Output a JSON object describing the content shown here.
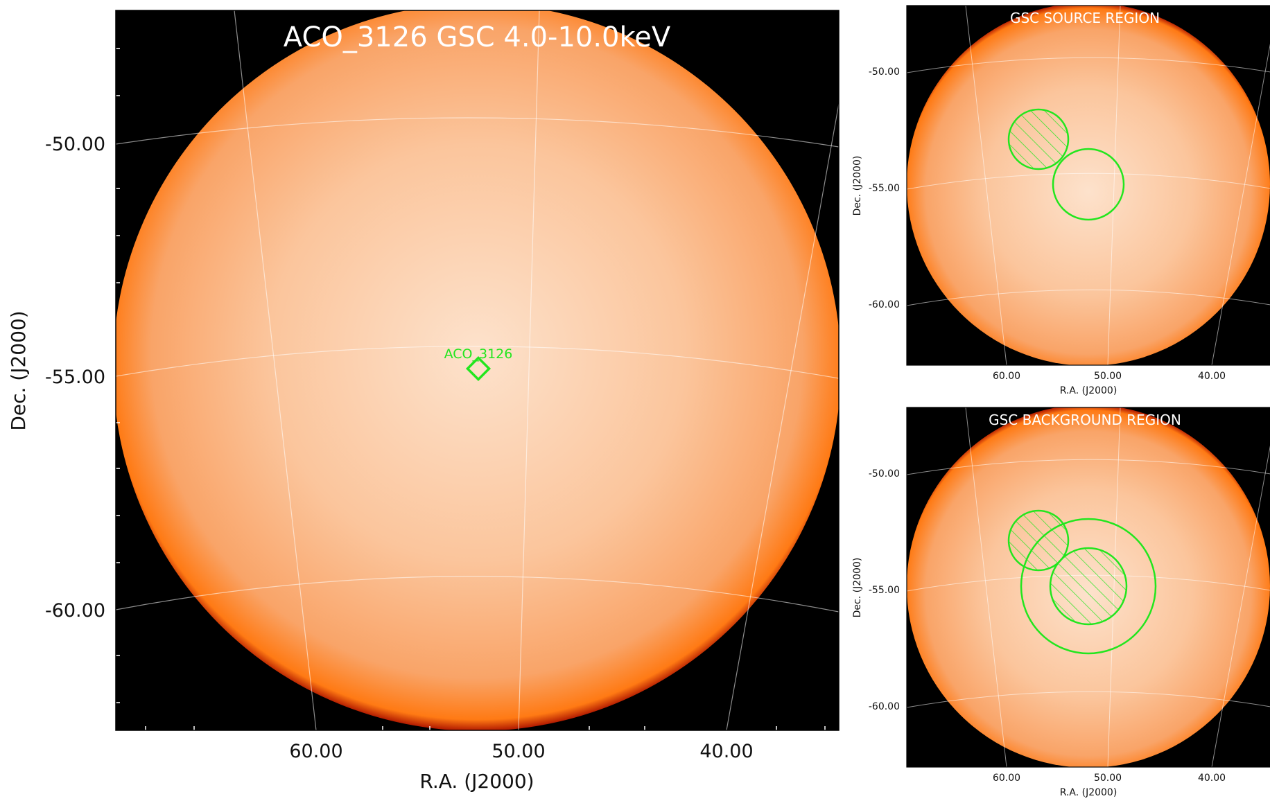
{
  "colors": {
    "sky_edge": "#000000",
    "disk_rim": "#ff7a14",
    "disk_center": "#fde2cc",
    "region": "#22e61e",
    "grid": "#ffffff"
  },
  "chart_data": [
    {
      "id": "main",
      "type": "heatmap",
      "title": "ACO_3126 GSC 4.0-10.0keV",
      "xlabel": "R.A. (J2000)",
      "ylabel": "Dec. (J2000)",
      "x_ticks": [
        "60.00",
        "50.00",
        "40.00"
      ],
      "y_ticks": [
        "-50.00",
        "-55.00",
        "-60.00"
      ],
      "grid": true,
      "marker": {
        "label": "ACO_3126",
        "shape": "diamond",
        "ra": 52.0,
        "dec": -54.9
      }
    },
    {
      "id": "source",
      "type": "heatmap",
      "title": "GSC SOURCE REGION",
      "xlabel": "R.A. (J2000)",
      "ylabel": "Dec. (J2000)",
      "x_ticks": [
        "60.00",
        "50.00",
        "40.00"
      ],
      "y_ticks": [
        "-50.00",
        "-55.00",
        "-60.00"
      ],
      "grid": true,
      "regions": [
        {
          "kind": "excluded",
          "shape": "circle",
          "ra": 56.0,
          "dec": -52.9,
          "hatched": true
        },
        {
          "kind": "source",
          "shape": "circle",
          "ra": 52.0,
          "dec": -54.9,
          "hatched": false
        }
      ]
    },
    {
      "id": "background",
      "type": "heatmap",
      "title": "GSC BACKGROUND REGION",
      "xlabel": "R.A. (J2000)",
      "ylabel": "Dec. (J2000)",
      "x_ticks": [
        "60.00",
        "50.00",
        "40.00"
      ],
      "y_ticks": [
        "-50.00",
        "-55.00",
        "-60.00"
      ],
      "grid": true,
      "regions": [
        {
          "kind": "excluded",
          "shape": "circle",
          "ra": 56.0,
          "dec": -52.9,
          "hatched": true
        },
        {
          "kind": "excluded",
          "shape": "circle",
          "ra": 52.0,
          "dec": -54.9,
          "hatched": true
        },
        {
          "kind": "background",
          "shape": "annulus-outer",
          "ra": 52.0,
          "dec": -54.9,
          "hatched": false
        }
      ]
    }
  ]
}
